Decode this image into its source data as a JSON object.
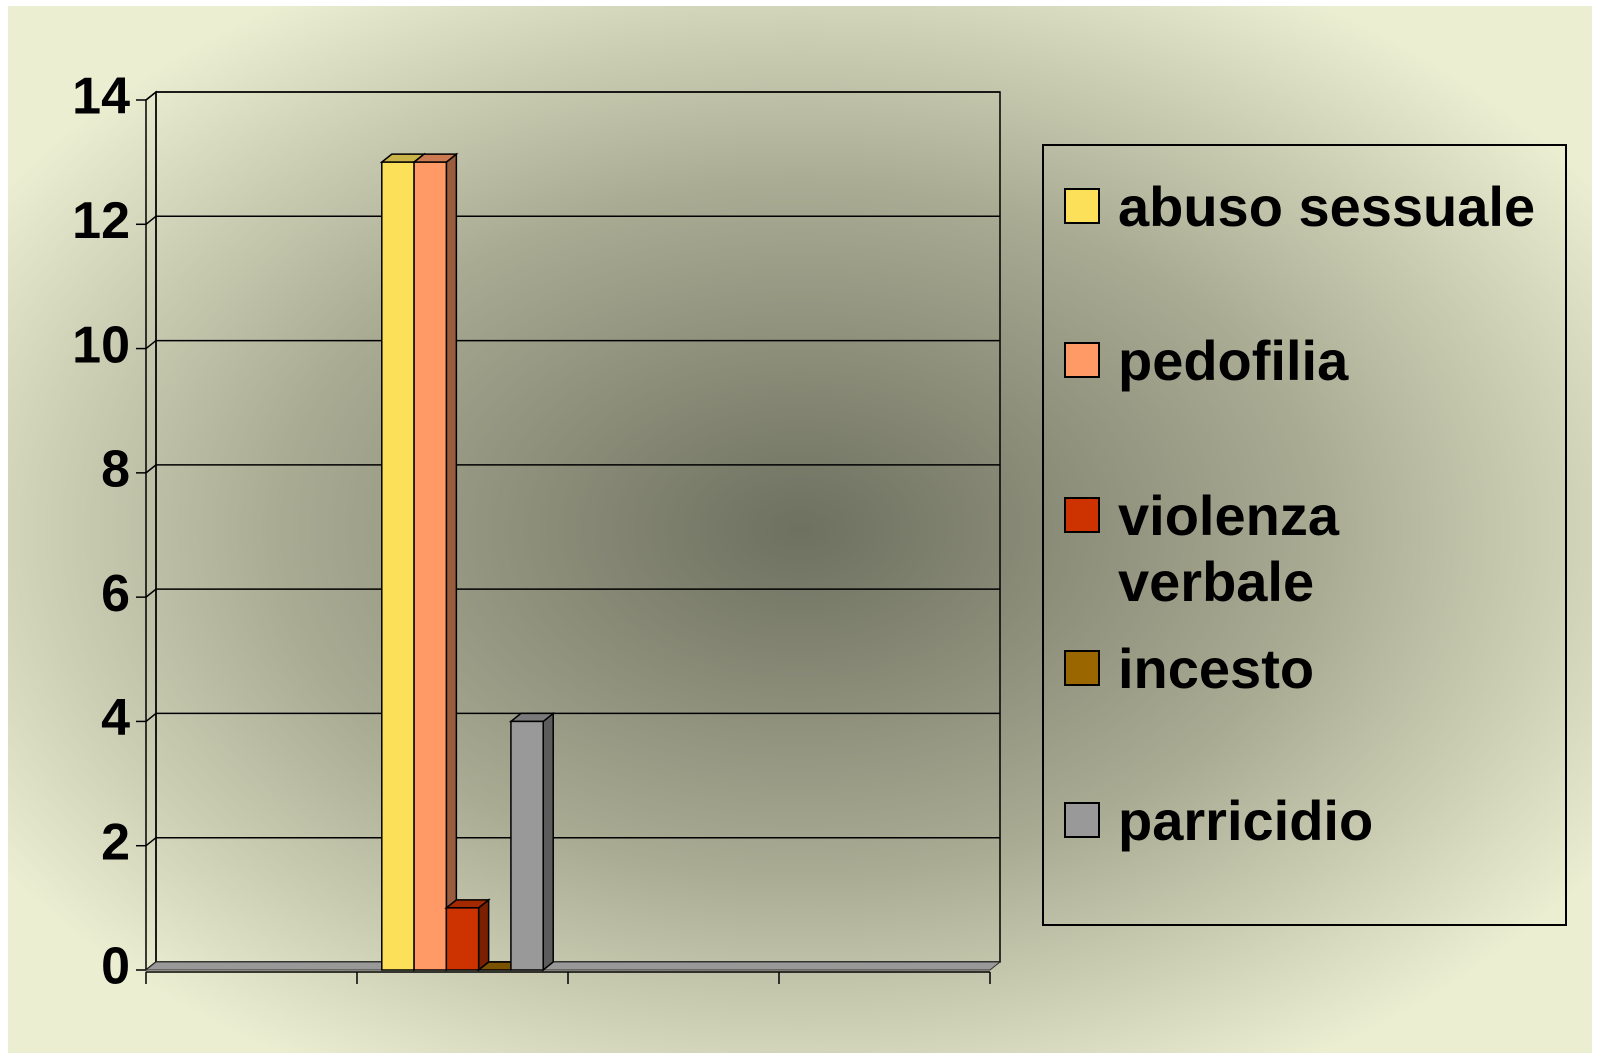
{
  "chart_data": {
    "type": "bar3d",
    "categories": [
      null,
      null,
      null,
      null
    ],
    "series": [
      {
        "name": "abuso sessuale",
        "color": "#fce05a",
        "values": [
          null,
          13,
          null,
          null
        ]
      },
      {
        "name": "pedofilia",
        "color": "#ff9966",
        "values": [
          null,
          13,
          null,
          null
        ]
      },
      {
        "name": "violenza verbale",
        "color": "#cc3300",
        "values": [
          null,
          1,
          null,
          null
        ]
      },
      {
        "name": "incesto",
        "color": "#996600",
        "values": [
          null,
          0,
          null,
          null
        ]
      },
      {
        "name": "parricidio",
        "color": "#999999",
        "values": [
          null,
          4,
          null,
          null
        ]
      }
    ],
    "ylim": [
      0,
      14
    ],
    "yticks": [
      0,
      2,
      4,
      6,
      8,
      10,
      12,
      14
    ],
    "grid": true,
    "legend": "right"
  }
}
